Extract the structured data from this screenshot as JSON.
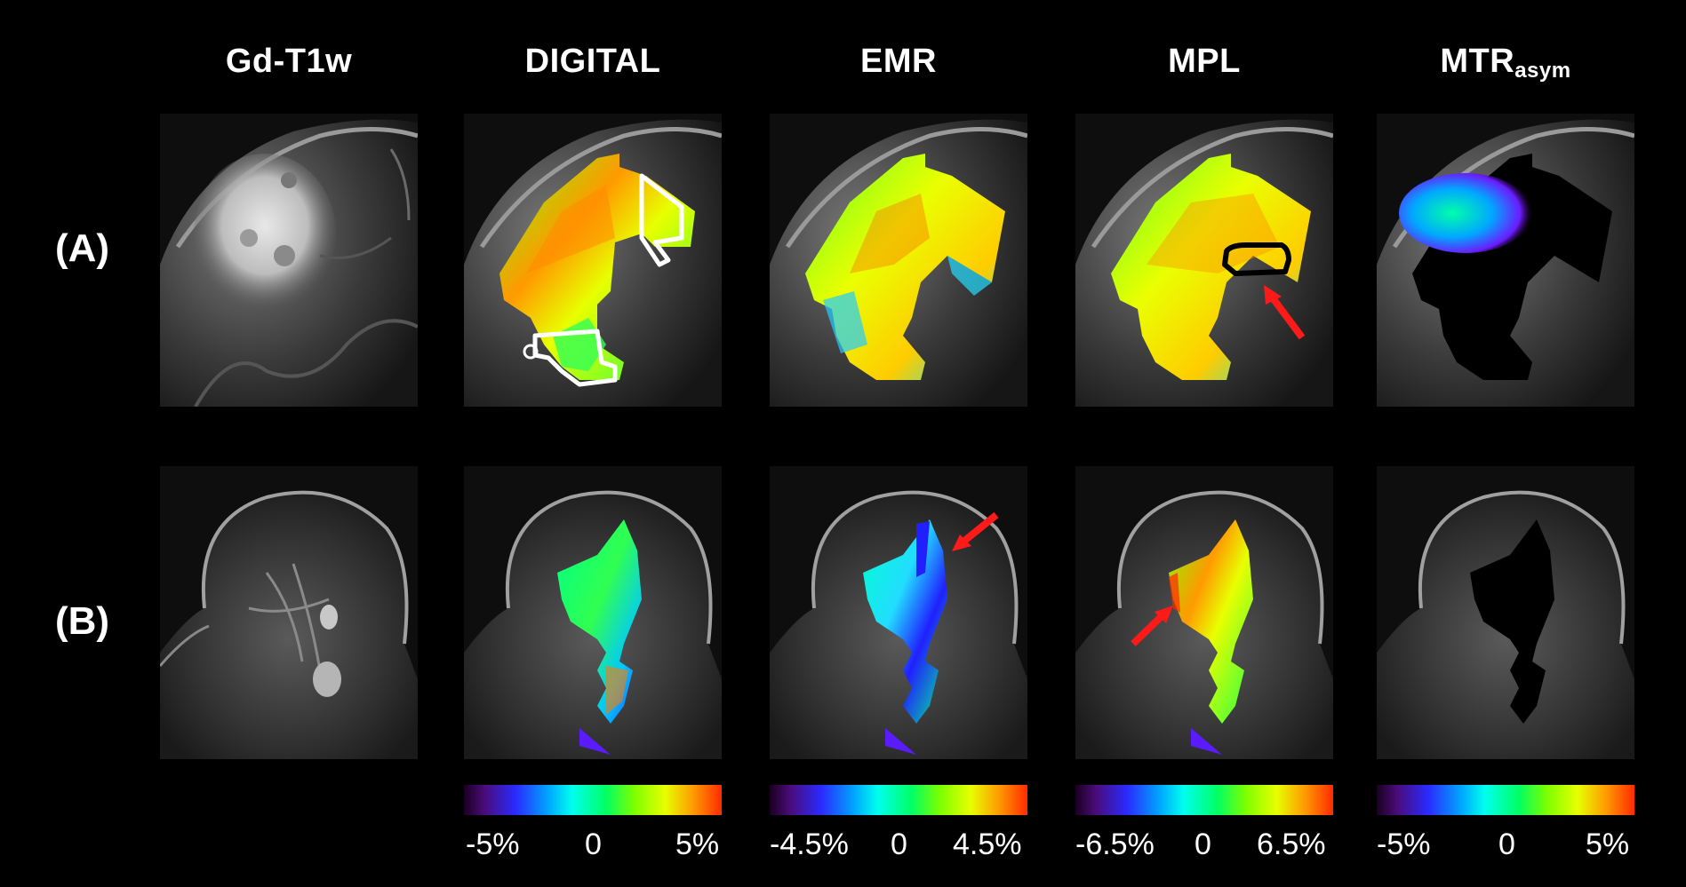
{
  "columns": [
    {
      "title": "Gd-T1w"
    },
    {
      "title": "DIGITAL"
    },
    {
      "title": "EMR"
    },
    {
      "title": "MPL"
    },
    {
      "title": "MTR",
      "title_sub": "asym"
    }
  ],
  "rows": [
    {
      "label": "(A)"
    },
    {
      "label": "(B)"
    }
  ],
  "colorbars": [
    {
      "min": "-5%",
      "mid": "0",
      "max": "5%"
    },
    {
      "min": "-4.5%",
      "mid": "0",
      "max": "4.5%"
    },
    {
      "min": "-6.5%",
      "mid": "0",
      "max": "6.5%"
    },
    {
      "min": "-5%",
      "mid": "0",
      "max": "5%"
    }
  ],
  "colors": {
    "background": "#000000",
    "arrow": "#ff1a1a",
    "roi_white": "#ffffff",
    "roi_black": "#000000"
  }
}
